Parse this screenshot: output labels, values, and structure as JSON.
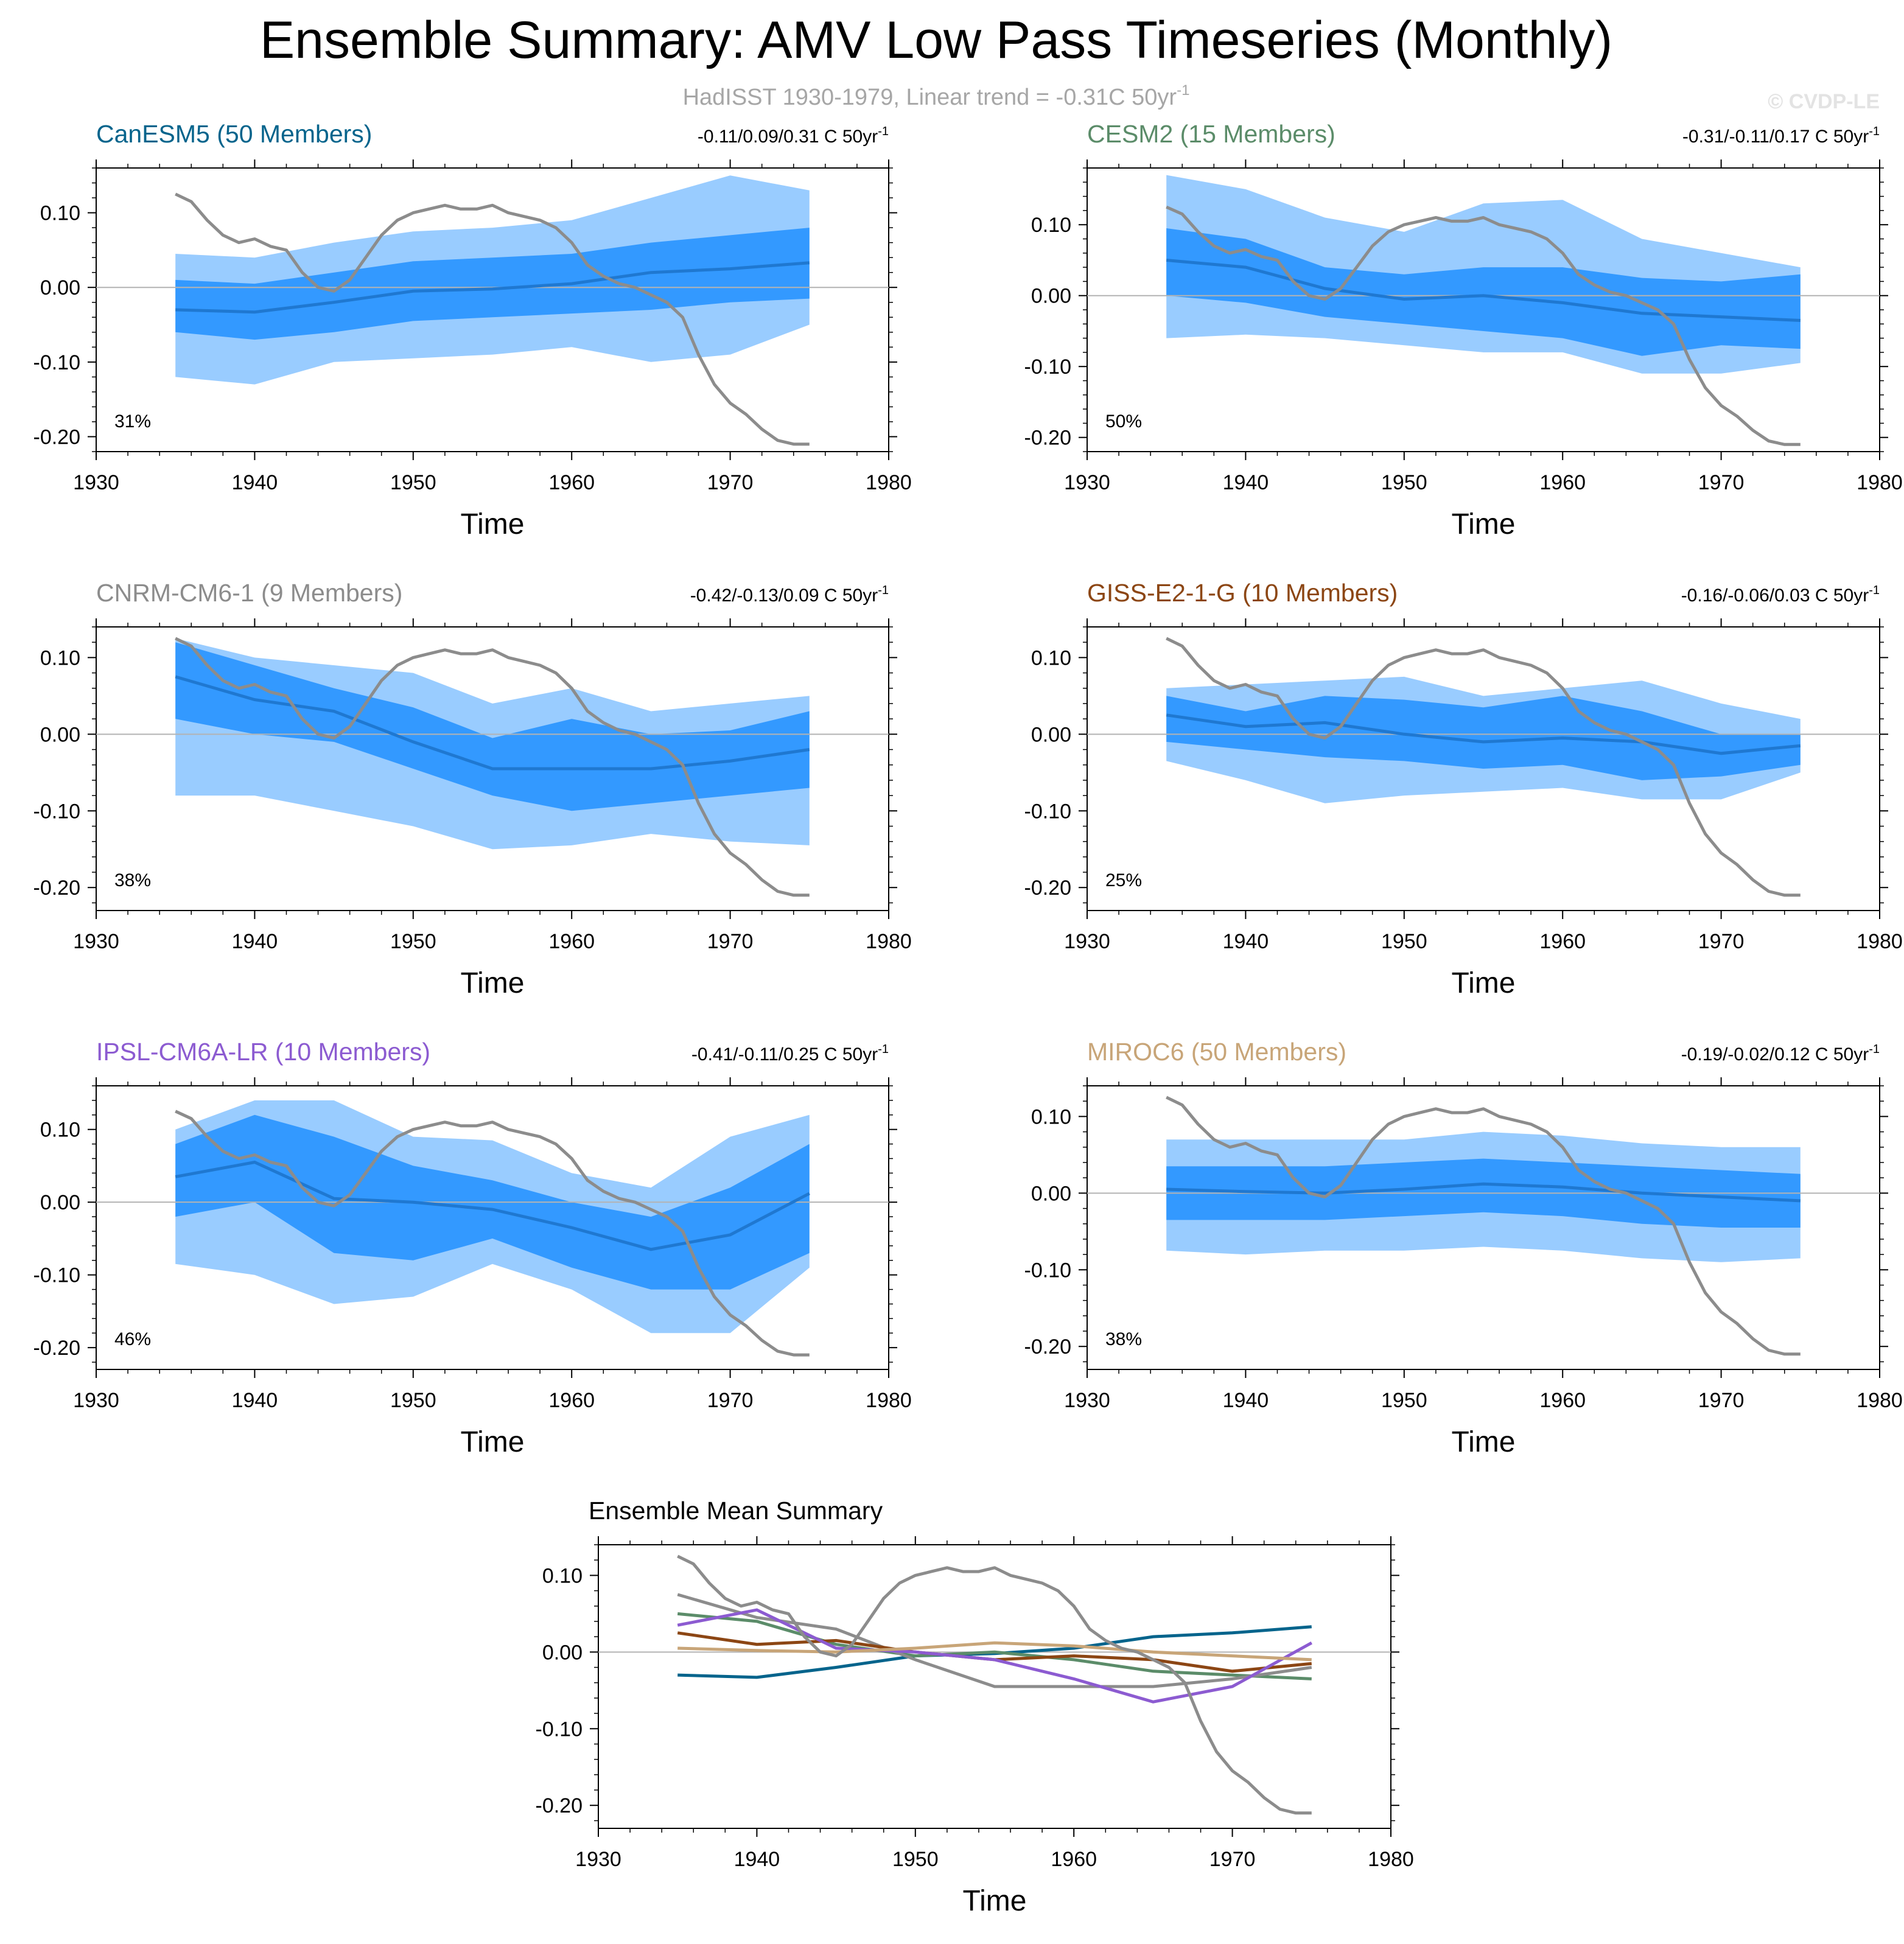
{
  "page": {
    "title": "Ensemble Summary: AMV Low Pass Timeseries (Monthly)",
    "subtitle_prefix": "HadISST 1930-1979, Linear trend = -0.31C 50yr",
    "subtitle_sup": "-1",
    "watermark": "© CVDP-LE"
  },
  "colors": {
    "outer_band": "#99ccff",
    "inner_band": "#3399ff",
    "ensemble_mean": "#1f78d1",
    "observation": "#8c8c8c",
    "zero_line": "#b3b3b3"
  },
  "chart_data": [
    {
      "type": "area",
      "title": "CanESM5 (50 Members)",
      "title_color": "#05648c",
      "trend_text": "-0.11/0.09/0.31 C 50yr",
      "trend_sup": "-1",
      "pct_label": "31%",
      "xlabel": "Time",
      "xlim": [
        1930,
        1980
      ],
      "ylim": [
        -0.22,
        0.16
      ],
      "xticks": [
        1930,
        1940,
        1950,
        1960,
        1970,
        1980
      ],
      "yticks": [
        0.1,
        0.0,
        -0.1,
        -0.2
      ],
      "ytick_labels": [
        "0.10",
        "0.00",
        "-0.10",
        "-0.20"
      ],
      "x": [
        1935,
        1940,
        1945,
        1950,
        1955,
        1960,
        1965,
        1970,
        1975
      ],
      "mean": [
        -0.03,
        -0.033,
        -0.02,
        -0.005,
        -0.002,
        0.005,
        0.02,
        0.025,
        0.033
      ],
      "inner_lower": [
        -0.06,
        -0.07,
        -0.06,
        -0.045,
        -0.04,
        -0.035,
        -0.03,
        -0.02,
        -0.015
      ],
      "inner_upper": [
        0.01,
        0.005,
        0.02,
        0.035,
        0.04,
        0.045,
        0.06,
        0.07,
        0.08
      ],
      "outer_lower": [
        -0.12,
        -0.13,
        -0.1,
        -0.095,
        -0.09,
        -0.08,
        -0.1,
        -0.09,
        -0.05
      ],
      "outer_upper": [
        0.045,
        0.04,
        0.06,
        0.075,
        0.08,
        0.09,
        0.12,
        0.15,
        0.13
      ]
    },
    {
      "type": "area",
      "title": "CESM2 (15 Members)",
      "title_color": "#5b8c69",
      "trend_text": "-0.31/-0.11/0.17 C 50yr",
      "trend_sup": "-1",
      "pct_label": "50%",
      "xlabel": "Time",
      "xlim": [
        1930,
        1980
      ],
      "ylim": [
        -0.22,
        0.18
      ],
      "xticks": [
        1930,
        1940,
        1950,
        1960,
        1970,
        1980
      ],
      "yticks": [
        0.1,
        0.0,
        -0.1,
        -0.2
      ],
      "ytick_labels": [
        "0.10",
        "0.00",
        "-0.10",
        "-0.20"
      ],
      "x": [
        1935,
        1940,
        1945,
        1950,
        1955,
        1960,
        1965,
        1970,
        1975
      ],
      "mean": [
        0.05,
        0.04,
        0.01,
        -0.005,
        0.0,
        -0.01,
        -0.025,
        -0.03,
        -0.035
      ],
      "inner_lower": [
        0.0,
        -0.01,
        -0.03,
        -0.04,
        -0.05,
        -0.06,
        -0.085,
        -0.07,
        -0.075
      ],
      "inner_upper": [
        0.095,
        0.08,
        0.04,
        0.03,
        0.04,
        0.04,
        0.025,
        0.02,
        0.03
      ],
      "outer_lower": [
        -0.06,
        -0.055,
        -0.06,
        -0.07,
        -0.08,
        -0.08,
        -0.11,
        -0.11,
        -0.095
      ],
      "outer_upper": [
        0.17,
        0.15,
        0.11,
        0.09,
        0.13,
        0.135,
        0.08,
        0.06,
        0.04
      ]
    },
    {
      "type": "area",
      "title": "CNRM-CM6-1 (9 Members)",
      "title_color": "#8c8c8c",
      "trend_text": "-0.42/-0.13/0.09 C 50yr",
      "trend_sup": "-1",
      "pct_label": "38%",
      "xlabel": "Time",
      "xlim": [
        1930,
        1980
      ],
      "ylim": [
        -0.23,
        0.14
      ],
      "xticks": [
        1930,
        1940,
        1950,
        1960,
        1970,
        1980
      ],
      "yticks": [
        0.1,
        0.0,
        -0.1,
        -0.2
      ],
      "ytick_labels": [
        "0.10",
        "0.00",
        "-0.10",
        "-0.20"
      ],
      "x": [
        1935,
        1940,
        1945,
        1950,
        1955,
        1960,
        1965,
        1970,
        1975
      ],
      "mean": [
        0.075,
        0.045,
        0.03,
        -0.01,
        -0.045,
        -0.045,
        -0.045,
        -0.035,
        -0.02
      ],
      "inner_lower": [
        0.02,
        0.0,
        -0.01,
        -0.045,
        -0.08,
        -0.1,
        -0.09,
        -0.08,
        -0.07
      ],
      "inner_upper": [
        0.12,
        0.09,
        0.06,
        0.035,
        -0.005,
        0.02,
        0.0,
        0.005,
        0.03
      ],
      "outer_lower": [
        -0.08,
        -0.08,
        -0.1,
        -0.12,
        -0.15,
        -0.145,
        -0.13,
        -0.14,
        -0.145
      ],
      "outer_upper": [
        0.125,
        0.1,
        0.09,
        0.08,
        0.04,
        0.06,
        0.03,
        0.04,
        0.05
      ]
    },
    {
      "type": "area",
      "title": "GISS-E2-1-G (10 Members)",
      "title_color": "#8c4614",
      "trend_text": "-0.16/-0.06/0.03 C 50yr",
      "trend_sup": "-1",
      "pct_label": "25%",
      "xlabel": "Time",
      "xlim": [
        1930,
        1980
      ],
      "ylim": [
        -0.23,
        0.14
      ],
      "xticks": [
        1930,
        1940,
        1950,
        1960,
        1970,
        1980
      ],
      "yticks": [
        0.1,
        0.0,
        -0.1,
        -0.2
      ],
      "ytick_labels": [
        "0.10",
        "0.00",
        "-0.10",
        "-0.20"
      ],
      "x": [
        1935,
        1940,
        1945,
        1950,
        1955,
        1960,
        1965,
        1970,
        1975
      ],
      "mean": [
        0.025,
        0.01,
        0.015,
        0.0,
        -0.01,
        -0.005,
        -0.01,
        -0.025,
        -0.015
      ],
      "inner_lower": [
        -0.01,
        -0.02,
        -0.03,
        -0.035,
        -0.045,
        -0.04,
        -0.06,
        -0.055,
        -0.04
      ],
      "inner_upper": [
        0.05,
        0.03,
        0.05,
        0.045,
        0.035,
        0.05,
        0.03,
        0.0,
        0.0
      ],
      "outer_lower": [
        -0.035,
        -0.06,
        -0.09,
        -0.08,
        -0.075,
        -0.07,
        -0.085,
        -0.085,
        -0.05
      ],
      "outer_upper": [
        0.06,
        0.065,
        0.07,
        0.075,
        0.05,
        0.06,
        0.07,
        0.04,
        0.02
      ]
    },
    {
      "type": "area",
      "title": "IPSL-CM6A-LR (10 Members)",
      "title_color": "#8c5bd1",
      "trend_text": "-0.41/-0.11/0.25 C 50yr",
      "trend_sup": "-1",
      "pct_label": "46%",
      "xlabel": "Time",
      "xlim": [
        1930,
        1980
      ],
      "ylim": [
        -0.23,
        0.16
      ],
      "xticks": [
        1930,
        1940,
        1950,
        1960,
        1970,
        1980
      ],
      "yticks": [
        0.1,
        0.0,
        -0.1,
        -0.2
      ],
      "ytick_labels": [
        "0.10",
        "0.00",
        "-0.10",
        "-0.20"
      ],
      "x": [
        1935,
        1940,
        1945,
        1950,
        1955,
        1960,
        1965,
        1970,
        1975
      ],
      "mean": [
        0.035,
        0.055,
        0.005,
        0.0,
        -0.01,
        -0.035,
        -0.065,
        -0.045,
        0.012
      ],
      "inner_lower": [
        -0.02,
        0.0,
        -0.07,
        -0.08,
        -0.05,
        -0.09,
        -0.12,
        -0.12,
        -0.07
      ],
      "inner_upper": [
        0.08,
        0.12,
        0.09,
        0.05,
        0.03,
        0.0,
        -0.02,
        0.02,
        0.08
      ],
      "outer_lower": [
        -0.085,
        -0.1,
        -0.14,
        -0.13,
        -0.085,
        -0.12,
        -0.18,
        -0.18,
        -0.09
      ],
      "outer_upper": [
        0.1,
        0.14,
        0.14,
        0.09,
        0.085,
        0.04,
        0.02,
        0.09,
        0.12
      ]
    },
    {
      "type": "area",
      "title": "MIROC6 (50 Members)",
      "title_color": "#c8a578",
      "trend_text": "-0.19/-0.02/0.12 C 50yr",
      "trend_sup": "-1",
      "pct_label": "38%",
      "xlabel": "Time",
      "xlim": [
        1930,
        1980
      ],
      "ylim": [
        -0.23,
        0.14
      ],
      "xticks": [
        1930,
        1940,
        1950,
        1960,
        1970,
        1980
      ],
      "yticks": [
        0.1,
        0.0,
        -0.1,
        -0.2
      ],
      "ytick_labels": [
        "0.10",
        "0.00",
        "-0.10",
        "-0.20"
      ],
      "x": [
        1935,
        1940,
        1945,
        1950,
        1955,
        1960,
        1965,
        1970,
        1975
      ],
      "mean": [
        0.005,
        0.002,
        0.0,
        0.005,
        0.012,
        0.008,
        0.0,
        -0.005,
        -0.01
      ],
      "inner_lower": [
        -0.035,
        -0.035,
        -0.035,
        -0.03,
        -0.025,
        -0.03,
        -0.04,
        -0.045,
        -0.045
      ],
      "inner_upper": [
        0.035,
        0.035,
        0.035,
        0.04,
        0.045,
        0.04,
        0.035,
        0.03,
        0.025
      ],
      "outer_lower": [
        -0.075,
        -0.08,
        -0.075,
        -0.075,
        -0.07,
        -0.075,
        -0.085,
        -0.09,
        -0.085
      ],
      "outer_upper": [
        0.07,
        0.07,
        0.07,
        0.07,
        0.08,
        0.075,
        0.065,
        0.06,
        0.06
      ]
    },
    {
      "type": "line",
      "title": "Ensemble Mean Summary",
      "xlabel": "Time",
      "xlim": [
        1930,
        1980
      ],
      "ylim": [
        -0.23,
        0.14
      ],
      "xticks": [
        1930,
        1940,
        1950,
        1960,
        1970,
        1980
      ],
      "yticks": [
        0.1,
        0.0,
        -0.1,
        -0.2
      ],
      "ytick_labels": [
        "0.10",
        "0.00",
        "-0.10",
        "-0.20"
      ],
      "x": [
        1935,
        1940,
        1945,
        1950,
        1955,
        1960,
        1965,
        1970,
        1975
      ],
      "series": [
        {
          "name": "CanESM5",
          "color": "#05648c",
          "values": [
            -0.03,
            -0.033,
            -0.02,
            -0.005,
            -0.002,
            0.005,
            0.02,
            0.025,
            0.033
          ]
        },
        {
          "name": "CESM2",
          "color": "#5b8c69",
          "values": [
            0.05,
            0.04,
            0.01,
            -0.005,
            0.0,
            -0.01,
            -0.025,
            -0.03,
            -0.035
          ]
        },
        {
          "name": "CNRM-CM6-1",
          "color": "#8c8c8c",
          "values": [
            0.075,
            0.045,
            0.03,
            -0.01,
            -0.045,
            -0.045,
            -0.045,
            -0.035,
            -0.02
          ]
        },
        {
          "name": "GISS-E2-1-G",
          "color": "#8c4614",
          "values": [
            0.025,
            0.01,
            0.015,
            0.0,
            -0.01,
            -0.005,
            -0.01,
            -0.025,
            -0.015
          ]
        },
        {
          "name": "IPSL-CM6A-LR",
          "color": "#8c5bd1",
          "values": [
            0.035,
            0.055,
            0.005,
            0.0,
            -0.01,
            -0.035,
            -0.065,
            -0.045,
            0.012
          ]
        },
        {
          "name": "MIROC6",
          "color": "#c8a578",
          "values": [
            0.005,
            0.002,
            0.0,
            0.005,
            0.012,
            0.008,
            0.0,
            -0.005,
            -0.01
          ]
        }
      ]
    }
  ],
  "observations": {
    "name": "HadISST",
    "x": [
      1935,
      1936,
      1937,
      1938,
      1939,
      1940,
      1941,
      1942,
      1943,
      1944,
      1945,
      1946,
      1947,
      1948,
      1949,
      1950,
      1951,
      1952,
      1953,
      1954,
      1955,
      1956,
      1957,
      1958,
      1959,
      1960,
      1961,
      1962,
      1963,
      1964,
      1965,
      1966,
      1967,
      1968,
      1969,
      1970,
      1971,
      1972,
      1973,
      1974,
      1975
    ],
    "values": [
      0.125,
      0.115,
      0.09,
      0.07,
      0.06,
      0.065,
      0.055,
      0.05,
      0.02,
      0.0,
      -0.005,
      0.01,
      0.04,
      0.07,
      0.09,
      0.1,
      0.105,
      0.11,
      0.105,
      0.105,
      0.11,
      0.1,
      0.095,
      0.09,
      0.08,
      0.06,
      0.03,
      0.015,
      0.005,
      0.0,
      -0.01,
      -0.02,
      -0.04,
      -0.09,
      -0.13,
      -0.155,
      -0.17,
      -0.19,
      -0.205,
      -0.21,
      -0.21
    ]
  }
}
